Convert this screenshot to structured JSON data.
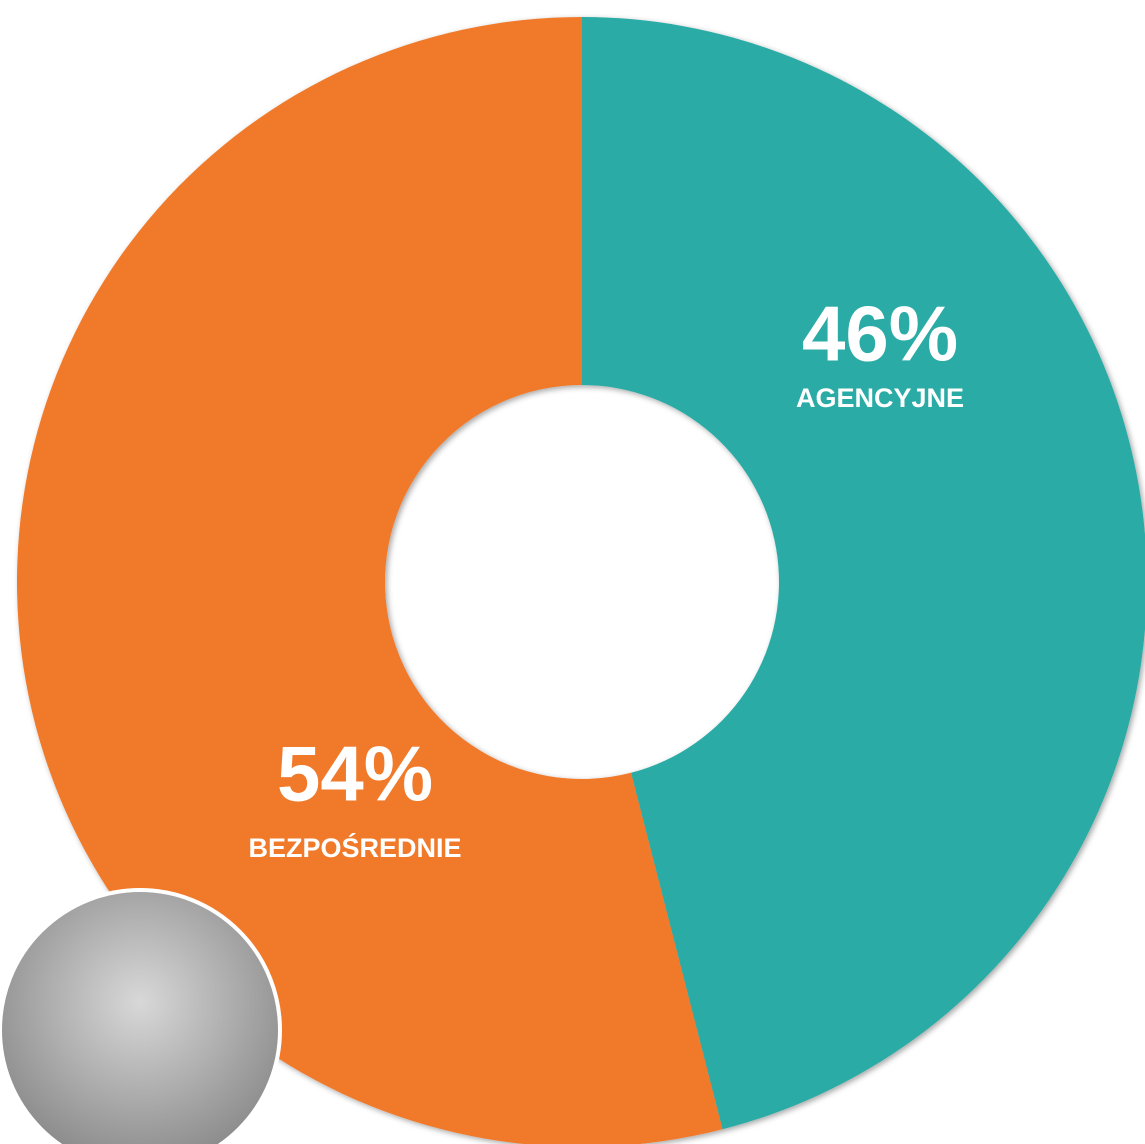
{
  "chart_data": {
    "type": "donut",
    "categories": [
      "AGENCYJNE",
      "BEZPOŚREDNIE"
    ],
    "values": [
      46,
      54
    ],
    "value_labels": [
      "46%",
      "54%"
    ],
    "colors": [
      "#2aaba6",
      "#f07a2c"
    ]
  }
}
